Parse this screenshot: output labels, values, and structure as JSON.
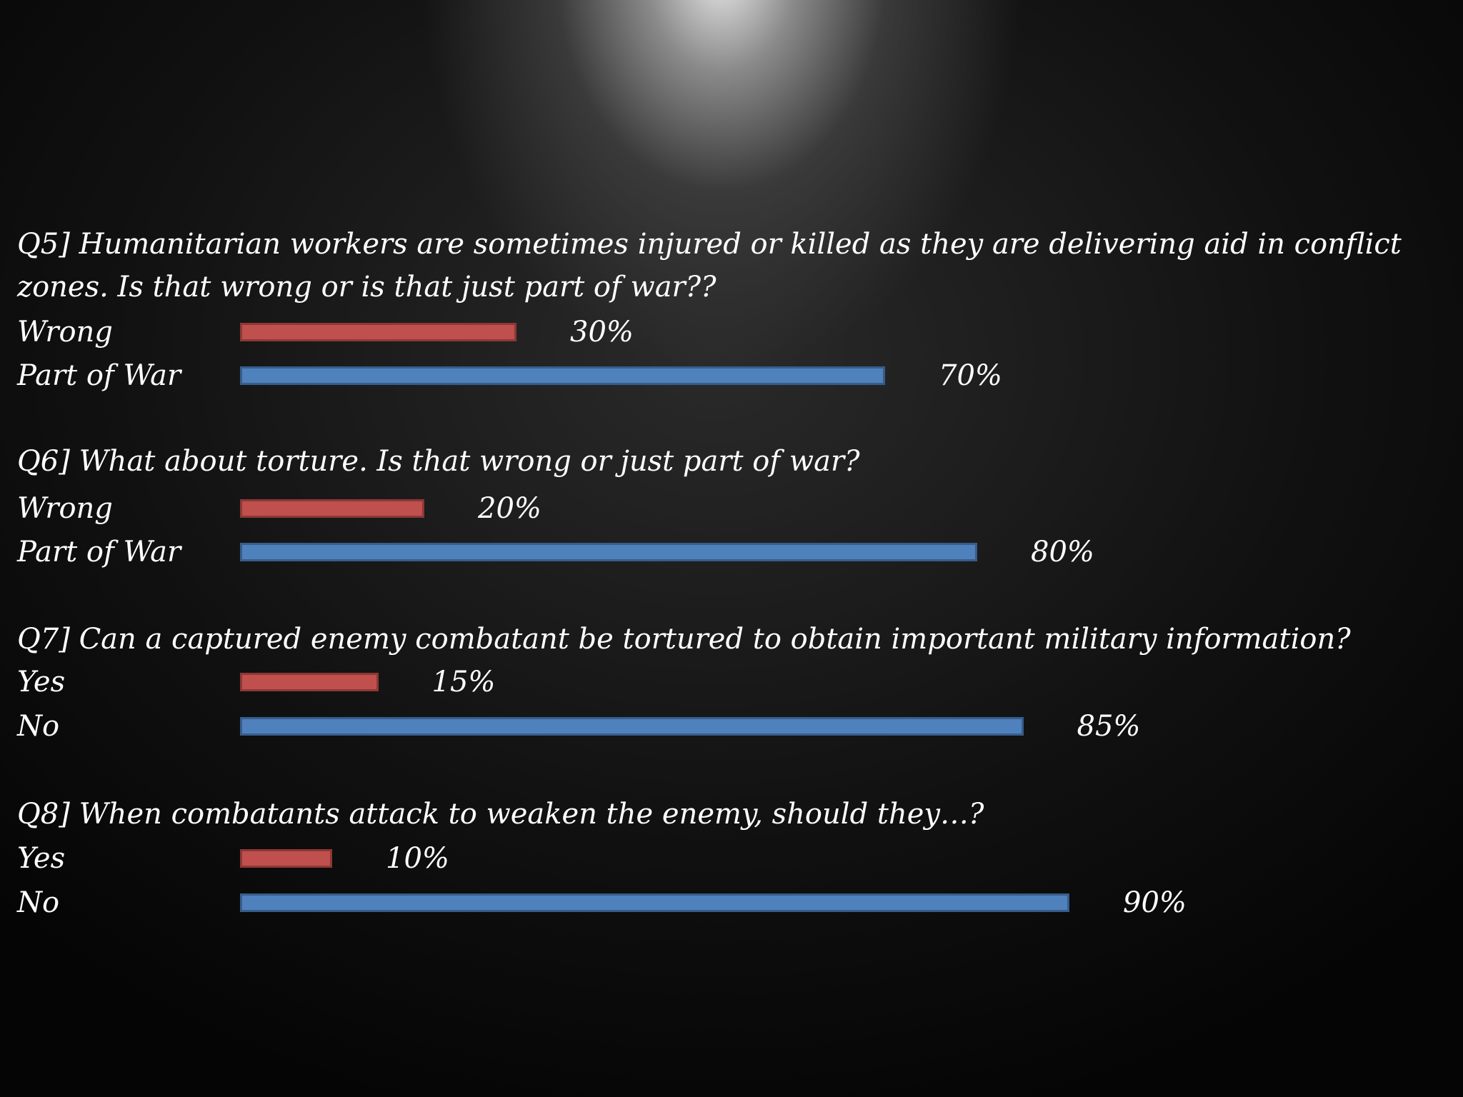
{
  "chart_data": [
    {
      "type": "bar",
      "title": "Q5] Humanitarian workers are sometimes injured or killed as they are delivering aid in conflict zones. Is that wrong or is that just part of war??",
      "categories": [
        "Wrong",
        "Part of War"
      ],
      "values": [
        30,
        70
      ],
      "value_labels": [
        "30%",
        "70%"
      ],
      "colors": [
        "#c0504d",
        "#4f81bd"
      ]
    },
    {
      "type": "bar",
      "title": "Q6] What about torture. Is that wrong or just part of war?",
      "categories": [
        "Wrong",
        "Part of War"
      ],
      "values": [
        20,
        80
      ],
      "value_labels": [
        "20%",
        "80%"
      ],
      "colors": [
        "#c0504d",
        "#4f81bd"
      ]
    },
    {
      "type": "bar",
      "title": "Q7] Can a captured enemy combatant be tortured to obtain important military information?",
      "categories": [
        "Yes",
        "No"
      ],
      "values": [
        15,
        85
      ],
      "value_labels": [
        "15%",
        "85%"
      ],
      "colors": [
        "#c0504d",
        "#4f81bd"
      ]
    },
    {
      "type": "bar",
      "title": "Q8] When combatants attack to weaken the enemy, should they…?",
      "categories": [
        "Yes",
        "No"
      ],
      "values": [
        10,
        90
      ],
      "value_labels": [
        "10%",
        "90%"
      ],
      "colors": [
        "#c0504d",
        "#4f81bd"
      ]
    }
  ]
}
